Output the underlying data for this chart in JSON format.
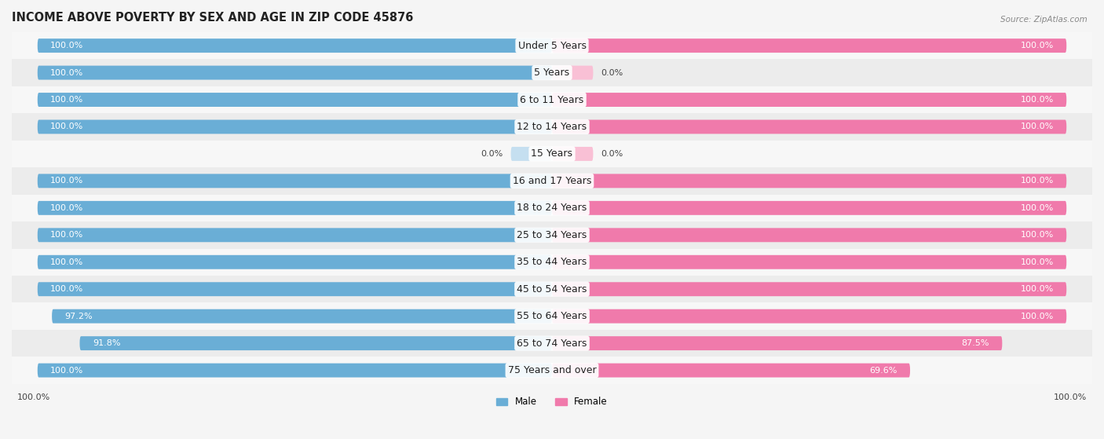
{
  "title": "INCOME ABOVE POVERTY BY SEX AND AGE IN ZIP CODE 45876",
  "source": "Source: ZipAtlas.com",
  "categories": [
    "Under 5 Years",
    "5 Years",
    "6 to 11 Years",
    "12 to 14 Years",
    "15 Years",
    "16 and 17 Years",
    "18 to 24 Years",
    "25 to 34 Years",
    "35 to 44 Years",
    "45 to 54 Years",
    "55 to 64 Years",
    "65 to 74 Years",
    "75 Years and over"
  ],
  "male_values": [
    100.0,
    100.0,
    100.0,
    100.0,
    0.0,
    100.0,
    100.0,
    100.0,
    100.0,
    100.0,
    97.2,
    91.8,
    100.0
  ],
  "female_values": [
    100.0,
    0.0,
    100.0,
    100.0,
    0.0,
    100.0,
    100.0,
    100.0,
    100.0,
    100.0,
    100.0,
    87.5,
    69.6
  ],
  "male_color": "#6aaed6",
  "female_color": "#f07aab",
  "male_stub_color": "#c5dff0",
  "female_stub_color": "#f9c0d5",
  "bg_odd": "#ececec",
  "bg_even": "#f7f7f7",
  "background_color": "#f5f5f5",
  "title_fontsize": 10.5,
  "label_fontsize": 9,
  "value_fontsize": 8,
  "bar_height": 0.52,
  "legend_labels": [
    "Male",
    "Female"
  ],
  "bottom_labels": [
    "100.0%",
    "100.0%"
  ]
}
